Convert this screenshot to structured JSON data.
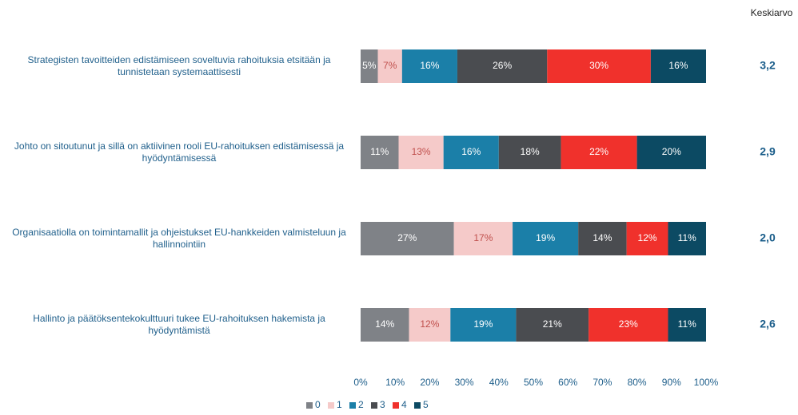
{
  "chart_data": {
    "type": "stacked_barh",
    "categories": [
      "Strategisten tavoitteiden edistämiseen soveltuvia rahoituksia etsitään ja tunnistetaan systemaattisesti",
      "Johto on sitoutunut ja sillä on aktiivinen rooli EU-rahoituksen edistämisessä ja hyödyntämisessä",
      "Organisaatiolla on toimintamallit ja ohjeistukset EU-hankkeiden valmisteluun ja hallinnointiin",
      "Hallinto ja päätöksentekokulttuuri tukee EU-rahoituksen hakemista ja hyödyntämistä"
    ],
    "series": [
      {
        "name": "0",
        "color": "#7f8287",
        "values": [
          5,
          11,
          27,
          14
        ],
        "value_labels": [
          "5%",
          "11%",
          "27%",
          "14%"
        ]
      },
      {
        "name": "1",
        "color": "#f5cac9",
        "values": [
          7,
          13,
          17,
          12
        ],
        "value_labels": [
          "7%",
          "13%",
          "17%",
          "12%"
        ]
      },
      {
        "name": "2",
        "color": "#1b7fa8",
        "values": [
          16,
          16,
          19,
          19
        ],
        "value_labels": [
          "16%",
          "16%",
          "19%",
          "19%"
        ]
      },
      {
        "name": "3",
        "color": "#4a4c50",
        "values": [
          26,
          18,
          14,
          21
        ],
        "value_labels": [
          "26%",
          "18%",
          "14%",
          "21%"
        ]
      },
      {
        "name": "4",
        "color": "#f0312c",
        "values": [
          30,
          22,
          12,
          23
        ],
        "value_labels": [
          "30%",
          "22%",
          "12%",
          "23%"
        ]
      },
      {
        "name": "5",
        "color": "#0c4a63",
        "values": [
          16,
          20,
          11,
          11
        ],
        "value_labels": [
          "16%",
          "20%",
          "11%",
          "11%"
        ]
      }
    ],
    "average_column": {
      "title": "Keskiarvo",
      "values": [
        3.2,
        2.9,
        2.0,
        2.6
      ],
      "value_labels": [
        "3,2",
        "2,9",
        "2,0",
        "2,6"
      ]
    },
    "xlim": [
      0,
      100
    ],
    "xticks": [
      {
        "value": 0,
        "label": "0%"
      },
      {
        "value": 10,
        "label": "10%"
      },
      {
        "value": 20,
        "label": "20%"
      },
      {
        "value": 30,
        "label": "30%"
      },
      {
        "value": 40,
        "label": "40%"
      },
      {
        "value": 50,
        "label": "50%"
      },
      {
        "value": 60,
        "label": "60%"
      },
      {
        "value": 70,
        "label": "70%"
      },
      {
        "value": 80,
        "label": "80%"
      },
      {
        "value": 90,
        "label": "90%"
      },
      {
        "value": 100,
        "label": "100%"
      }
    ],
    "legend_position": "bottom"
  }
}
